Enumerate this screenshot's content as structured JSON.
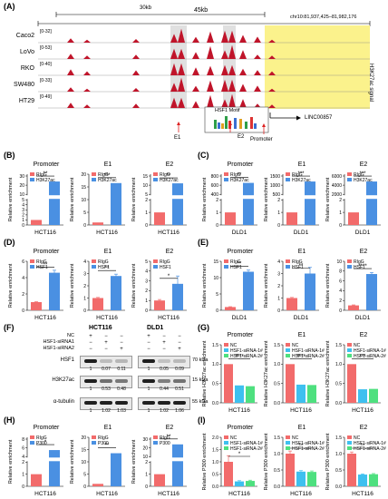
{
  "panelA": {
    "label": "(A)",
    "scale_30kb": "30kb",
    "scale_45kb": "45kb",
    "locus": "chr10:81,937,425–81,982,176",
    "side_label": "H3K27ac signal",
    "tracks": [
      {
        "cell": "Caco2",
        "range": "[0-32]"
      },
      {
        "cell": "LoVo",
        "range": "[0-53]"
      },
      {
        "cell": "RKO",
        "range": "[0-40]"
      },
      {
        "cell": "SW480",
        "range": "[0-33]"
      },
      {
        "cell": "HT29",
        "range": "[0-49]"
      }
    ],
    "motif": "HSF1 Motif",
    "gene": "LINC00857",
    "e1": "E1",
    "e2": "E2",
    "promoter": "Promoter",
    "colors": {
      "track": "#c0142a",
      "shade": "#e0e0e0",
      "highlight": "#fbf28c"
    }
  },
  "legend_common": {
    "rigg": "RIgG",
    "nc": "NC",
    "si1": "HSF1-siRNA-1#",
    "si2": "HSF1-siRNA-2#"
  },
  "colors": {
    "rigg": "#f26b6b",
    "ab": "#4a90e2",
    "nc": "#f26b6b",
    "si1": "#3ec0ef",
    "si2": "#4ee07f"
  },
  "panelB": {
    "label": "(B)",
    "cell": "HCT116",
    "ab": "H3K27ac",
    "ylabel": "Relative enrichment",
    "sub": [
      {
        "title": "Promoter",
        "sig": "**",
        "yt_top": [
          "30",
          "20",
          "10"
        ],
        "yt_bot": [
          "5",
          "4",
          "3",
          "2",
          "1",
          "0"
        ],
        "values": [
          1.0,
          24
        ]
      },
      {
        "title": "E1",
        "sig": "***",
        "yt": [
          "20",
          "15",
          "10",
          "5",
          "0"
        ],
        "values": [
          1.0,
          16.5
        ]
      },
      {
        "title": "E2",
        "sig": "**",
        "yt_top": [
          "15",
          "10",
          "5"
        ],
        "yt_bot": [
          "2",
          "1",
          "0"
        ],
        "values": [
          1.0,
          11
        ]
      }
    ]
  },
  "panelC": {
    "label": "(C)",
    "cell": "DLD1",
    "ab": "H3K27ac",
    "ylabel": "Relative enrichment",
    "sub": [
      {
        "title": "Promoter",
        "sig": "**",
        "yt_top": [
          "800",
          "600",
          "400"
        ],
        "yt_bot": [
          "2",
          "1",
          "0"
        ],
        "values": [
          1.0,
          650
        ]
      },
      {
        "title": "E1",
        "sig": "***",
        "yt_top": [
          "1500",
          "1000",
          "500"
        ],
        "yt_bot": [
          "2",
          "1",
          "0"
        ],
        "values": [
          1.0,
          1200
        ]
      },
      {
        "title": "E2",
        "sig": "***",
        "yt_top": [
          "6000",
          "4000",
          "2000"
        ],
        "yt_bot": [
          "2",
          "1",
          "0"
        ],
        "values": [
          1.0,
          4800
        ]
      }
    ]
  },
  "panelD": {
    "label": "(D)",
    "cell": "HCT116",
    "ab": "HSF1",
    "ylabel": "Relative enrichment",
    "sub": [
      {
        "title": "Promoter",
        "sig": "**",
        "yt": [
          "6",
          "4",
          "2",
          "0"
        ],
        "ymax": 6,
        "values": [
          1.0,
          4.6
        ],
        "err": [
          0.05,
          0.3
        ]
      },
      {
        "title": "E1",
        "sig": "**",
        "yt": [
          "4",
          "3",
          "2",
          "1",
          "0"
        ],
        "ymax": 4,
        "values": [
          1.0,
          2.8
        ],
        "err": [
          0.05,
          0.15
        ]
      },
      {
        "title": "E2",
        "sig": "*",
        "yt": [
          "5",
          "4",
          "3",
          "2",
          "1",
          "0"
        ],
        "ymax": 5,
        "values": [
          1.0,
          2.7
        ],
        "err": [
          0.1,
          0.8
        ]
      }
    ]
  },
  "panelE": {
    "label": "(E)",
    "cell": "DLD1",
    "ab": "HSF1",
    "ylabel": "Relative enrichment",
    "sub": [
      {
        "title": "Promoter",
        "sig": "**",
        "yt": [
          "15",
          "10",
          "5",
          "0"
        ],
        "ymax": 15,
        "values": [
          1.0,
          11.8
        ],
        "err": [
          0.1,
          0.5
        ]
      },
      {
        "title": "E1",
        "sig": "**",
        "yt": [
          "4",
          "3",
          "2",
          "1",
          "0"
        ],
        "ymax": 4,
        "values": [
          1.0,
          3.0
        ],
        "err": [
          0.05,
          0.5
        ]
      },
      {
        "title": "E2",
        "sig": "****",
        "yt": [
          "10",
          "8",
          "6",
          "4",
          "2",
          "0"
        ],
        "ymax": 10,
        "values": [
          1.0,
          7.4
        ],
        "err": [
          0.1,
          0.3
        ]
      }
    ]
  },
  "panelF": {
    "label": "(F)",
    "cell1": "HCT116",
    "cell2": "DLD1",
    "rows": [
      "NC",
      "HSF1-siRNA1",
      "HSF1-siRNA2"
    ],
    "signs": [
      [
        "+",
        "−",
        "−",
        "+",
        "−",
        "−"
      ],
      [
        "−",
        "+",
        "−",
        "−",
        "+",
        "−"
      ],
      [
        "−",
        "−",
        "+",
        "−",
        "−",
        "+"
      ]
    ],
    "bands": [
      {
        "name": "HSF1",
        "kda": "70 kDa",
        "q": [
          "1",
          "0.07",
          "0.11",
          "1",
          "0.05",
          "0.09"
        ]
      },
      {
        "name": "H3K27ac",
        "kda": "15 kDa",
        "q": [
          "1",
          "0.53",
          "0.48",
          "1",
          "0.44",
          "0.51"
        ]
      },
      {
        "name": "α-tubulin",
        "kda": "55 kDa",
        "q": [
          "1",
          "1.02",
          "1.03",
          "1",
          "1.02",
          "1.06"
        ]
      }
    ]
  },
  "panelG": {
    "label": "(G)",
    "cell": "HCT116",
    "ylabel": "Relative H3K27ac enrichment",
    "sub": [
      {
        "title": "Promoter",
        "sig": "****",
        "yt": [
          "1.5",
          "1.0",
          "0.5",
          "0.0"
        ],
        "ymax": 1.5,
        "values": [
          1.0,
          0.45,
          0.43
        ]
      },
      {
        "title": "E1",
        "sig": "****",
        "yt": [
          "1.5",
          "1.0",
          "0.5",
          "0.0"
        ],
        "ymax": 1.5,
        "values": [
          1.0,
          0.47,
          0.46
        ]
      },
      {
        "title": "E2",
        "sig": "***",
        "yt": [
          "1.5",
          "1.0",
          "0.5",
          "0.0"
        ],
        "ymax": 1.5,
        "values": [
          1.0,
          0.35,
          0.36
        ]
      }
    ]
  },
  "panelH": {
    "label": "(H)",
    "cell": "HCT116",
    "ab": "P300",
    "ylabel": "Relative enrichment",
    "sub": [
      {
        "title": "Promoter",
        "sig": "*",
        "yt_top": [
          "8",
          "6",
          "4"
        ],
        "yt_bot": [
          "2",
          "1",
          "0"
        ],
        "values": [
          1.0,
          5.5
        ]
      },
      {
        "title": "E1",
        "sig": "**",
        "yt": [
          "20",
          "15",
          "10",
          "5",
          "0"
        ],
        "ymax": 20,
        "values": [
          1.0,
          13.5
        ]
      },
      {
        "title": "E2",
        "sig": "**",
        "yt_top": [
          "30",
          "20",
          "10"
        ],
        "yt_bot": [
          "2",
          "1",
          "0"
        ],
        "values": [
          1.0,
          24
        ]
      }
    ]
  },
  "panelI": {
    "label": "(I)",
    "cell": "HCT116",
    "ylabel": "Relative P300 enrichment",
    "sub": [
      {
        "title": "Promoter",
        "sig": "*",
        "yt": [
          "2.0",
          "1.5",
          "1.0",
          "0.5",
          "0.0"
        ],
        "ymax": 2.0,
        "values": [
          1.0,
          0.2,
          0.22
        ],
        "err": [
          0.25,
          0.03,
          0.03
        ]
      },
      {
        "title": "E1",
        "sig": "**",
        "yt": [
          "1.5",
          "1.0",
          "0.5",
          "0.0"
        ],
        "ymax": 1.5,
        "values": [
          1.0,
          0.45,
          0.44
        ],
        "err": [
          0.08,
          0.03,
          0.03
        ]
      },
      {
        "title": "E2",
        "sig": "**",
        "yt": [
          "1.5",
          "1.0",
          "0.5",
          "0.0"
        ],
        "ymax": 1.5,
        "values": [
          1.0,
          0.36,
          0.37
        ],
        "err": [
          0.05,
          0.02,
          0.02
        ]
      }
    ]
  }
}
